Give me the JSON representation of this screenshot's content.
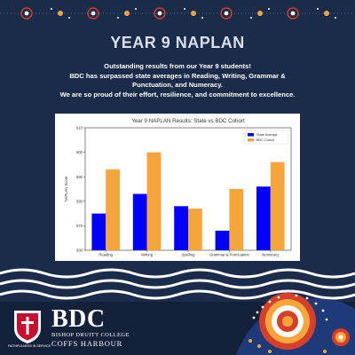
{
  "headline": "YEAR 9 NAPLAN",
  "intro_lines": [
    "Outstanding results from our Year 9 students!",
    "BDC has surpassed state averages in Reading, Writing, Grammar &",
    "Punctuation, and Numeracy.",
    "We are so proud of their effort, resilience, and commitment to excellence."
  ],
  "chart_data": {
    "type": "bar",
    "title": "Year 9 NAPLAN Results: State vs BDC Cohort",
    "xlabel": "",
    "ylabel": "NAPLAN Score",
    "categories": [
      "Reading",
      "Writing",
      "Spelling",
      "Grammar & Punctuation",
      "Numeracy"
    ],
    "series": [
      {
        "name": "State Average",
        "values": [
          575,
          583,
          578,
          568,
          586
        ],
        "color": "#0000ff"
      },
      {
        "name": "BDC Cohort",
        "values": [
          593,
          600,
          577,
          585,
          596
        ],
        "color": "#f5a53a"
      }
    ],
    "ylim": [
      560,
      610
    ],
    "yticks": [
      560,
      570,
      580,
      590,
      600,
      610
    ],
    "legend_position": "top-right",
    "grid": false
  },
  "logo": {
    "name": "BDC",
    "full_name": "BISHOP DRUITT COLLEGE",
    "location": "COFFS HARBOUR",
    "motto": "FAITHFULNESS IN SERVICE"
  },
  "colors": {
    "background": "#1b2b4a",
    "accent_orange": "#f5a53a",
    "accent_red": "#d6402a"
  }
}
